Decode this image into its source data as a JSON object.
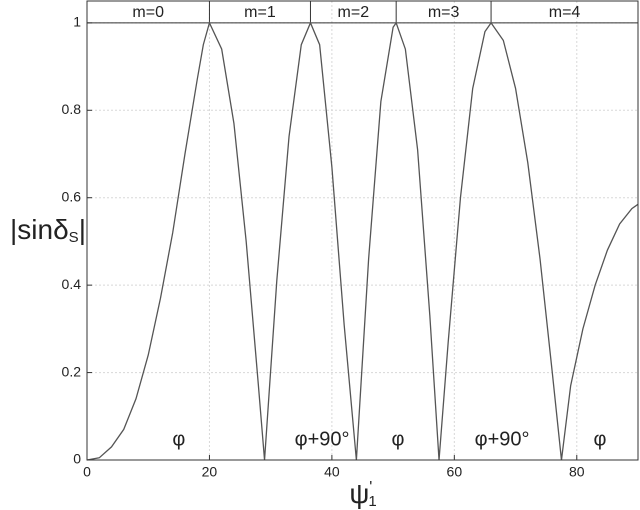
{
  "chart_data": {
    "type": "line",
    "xlabel_parts": [
      "ψ",
      "'",
      "1"
    ],
    "ylabel_parts": [
      "|sinδ",
      "S",
      "|"
    ],
    "x": [
      0,
      2,
      4,
      6,
      8,
      10,
      12,
      14,
      16,
      18,
      19,
      20,
      22,
      24,
      26,
      28,
      29,
      31,
      33,
      35,
      36.5,
      38,
      40,
      42,
      44,
      46,
      48,
      50,
      50.5,
      52,
      54,
      56,
      57.5,
      59,
      61,
      63,
      65,
      66,
      68,
      70,
      72,
      74,
      76,
      77.5,
      79,
      81,
      83,
      85,
      87,
      89,
      90
    ],
    "series": [
      {
        "color": "#555555",
        "values": [
          0,
          0.005,
          0.03,
          0.07,
          0.14,
          0.24,
          0.37,
          0.52,
          0.7,
          0.87,
          0.95,
          1,
          0.94,
          0.77,
          0.5,
          0.17,
          0,
          0.41,
          0.74,
          0.95,
          1,
          0.95,
          0.67,
          0.31,
          0,
          0.46,
          0.82,
          0.99,
          1,
          0.94,
          0.71,
          0.33,
          0,
          0.27,
          0.6,
          0.85,
          0.98,
          1,
          0.96,
          0.85,
          0.68,
          0.46,
          0.2,
          0,
          0.17,
          0.3,
          0.4,
          0.48,
          0.54,
          0.575,
          0.585
        ]
      }
    ],
    "xlim": [
      0,
      90
    ],
    "ylim": [
      0,
      1.05
    ],
    "xticks": [
      0,
      20,
      40,
      60,
      80
    ],
    "yticks": [
      0,
      0.2,
      0.4,
      0.6,
      0.8,
      1
    ],
    "grid": true,
    "hline": 1,
    "region_boundaries": [
      20,
      36.5,
      50.5,
      66
    ],
    "region_labels": [
      "m=0",
      "m=1",
      "m=2",
      "m=3",
      "m=4"
    ],
    "annotations": [
      {
        "text": "φ",
        "x": 15,
        "y": 0.045
      },
      {
        "text": "φ+90°",
        "x": 38.4,
        "y": 0.045
      },
      {
        "text": "φ",
        "x": 50.8,
        "y": 0.045
      },
      {
        "text": "φ+90°",
        "x": 67.8,
        "y": 0.045
      },
      {
        "text": "φ",
        "x": 83.8,
        "y": 0.045
      }
    ]
  }
}
